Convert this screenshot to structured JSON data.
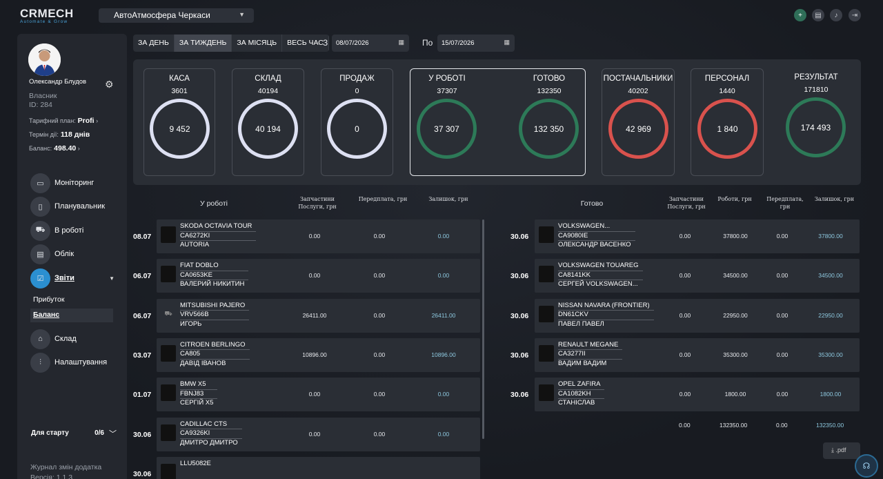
{
  "app": {
    "logo_main": "CRMECH",
    "logo_tag": "Automate & Grow"
  },
  "header": {
    "shop": "АвтоАтмосфера Черкаси",
    "icons": [
      "plus-icon",
      "calendar-icon",
      "bell-icon",
      "logout-icon"
    ]
  },
  "user": {
    "name": "Олександр Блудов",
    "role": "Власник",
    "id": "ID: 284",
    "plan_label": "Тарифний план:",
    "plan": "Profi",
    "term_label": "Термін дії:",
    "term": "118 днів",
    "balance_label": "Баланс:",
    "balance": "498.40"
  },
  "nav": [
    {
      "label": "Моніторинг",
      "icon": "camera-icon"
    },
    {
      "label": "Планувальник",
      "icon": "notebook-icon"
    },
    {
      "label": "В роботі",
      "icon": "car-icon"
    },
    {
      "label": "Облік",
      "icon": "document-icon"
    },
    {
      "label": "Звіти",
      "icon": "report-icon"
    },
    {
      "label": "Склад",
      "icon": "warehouse-icon"
    },
    {
      "label": "Налаштування",
      "icon": "sliders-icon"
    }
  ],
  "reports_sub": [
    "Прибуток",
    "Баланс"
  ],
  "start": {
    "label": "Для старту",
    "count": "0/6"
  },
  "changelog": {
    "title": "Журнал змін додатка",
    "version": "Версія: 1.1.3"
  },
  "period": {
    "tabs": [
      "ЗА ДЕНЬ",
      "ЗА ТИЖДЕНЬ",
      "ЗА МІСЯЦЬ",
      "ВЕСЬ ЧАС"
    ],
    "from_label": "З",
    "from": "08/07/2026",
    "to_label": "По",
    "to": "15/07/2026"
  },
  "stats": {
    "kasa": {
      "title": "КАСА",
      "value": "3601",
      "ring": "9 452"
    },
    "sklad": {
      "title": "СКЛАД",
      "value": "40194",
      "ring": "40 194"
    },
    "prodazh": {
      "title": "ПРОДАЖ",
      "value": "0",
      "ring": "0"
    },
    "u_roboti": {
      "title": "У РОБОТІ",
      "value": "37307",
      "ring": "37 307"
    },
    "gotovo": {
      "title": "ГОТОВО",
      "value": "132350",
      "ring": "132 350"
    },
    "postach": {
      "title": "ПОСТАЧАЛЬНИКИ",
      "value": "40202",
      "ring": "42 969"
    },
    "personal": {
      "title": "ПЕРСОНАЛ",
      "value": "1440",
      "ring": "1 840"
    },
    "result": {
      "title": "РЕЗУЛЬТАТ",
      "value": "171810",
      "ring": "174 493"
    },
    "colors": {
      "neutral": "#dde0f2",
      "red": "#d9524d",
      "green": "#2d7a58"
    }
  },
  "left_table": {
    "title": "У роботі",
    "col1": [
      "Запчастини",
      "Послуги, грн"
    ],
    "col2": "Передплата, грн",
    "col3": "Залишок, грн",
    "rows": [
      {
        "date": "08.07",
        "car": "SKODA OCTAVIA TOUR",
        "plate": "CA6272KI",
        "client": "AUTORIA",
        "a": "0.00",
        "b": "0.00",
        "c": "0.00"
      },
      {
        "date": "06.07",
        "car": "FIAT DOBLO",
        "plate": "CA0653KE",
        "client": "ВАЛЕРИЙ НИКИТИН",
        "a": "0.00",
        "b": "0.00",
        "c": "0.00"
      },
      {
        "date": "06.07",
        "car": "MITSUBISHI PAJERO",
        "plate": "VRV566B",
        "client": "ИГОРЬ",
        "a": "26411.00",
        "b": "0.00",
        "c": "26411.00"
      },
      {
        "date": "03.07",
        "car": "CITROEN BERLINGO",
        "plate": "CA805",
        "client": "ДАВІД ІВАНОВ",
        "a": "10896.00",
        "b": "0.00",
        "c": "10896.00"
      },
      {
        "date": "01.07",
        "car": "BMW X5",
        "plate": "FBNJ83",
        "client": "СЕРГІЙ X5",
        "a": "0.00",
        "b": "0.00",
        "c": "0.00"
      },
      {
        "date": "30.06",
        "car": "CADILLAC CTS",
        "plate": "CA9326KI",
        "client": "ДМИТРО ДМИТРО",
        "a": "0.00",
        "b": "0.00",
        "c": "0.00"
      },
      {
        "date": "30.06",
        "car": "LLU5082E",
        "plate": "",
        "client": "",
        "a": "",
        "b": "",
        "c": ""
      }
    ]
  },
  "right_table": {
    "title": "Готово",
    "col1": [
      "Запчастини",
      "Послуги, грн"
    ],
    "col2": "Роботи, грн",
    "col3": [
      "Передплата,",
      "грн"
    ],
    "col4": "Залишок, грн",
    "rows": [
      {
        "date": "30.06",
        "car": "VOLKSWAGEN...",
        "plate": "CA9080IE",
        "client": "ОЛЕКСАНДР ВАСЕНКО",
        "a": "0.00",
        "b": "37800.00",
        "c": "0.00",
        "d": "37800.00"
      },
      {
        "date": "30.06",
        "car": "VOLKSWAGEN TOUAREG",
        "plate": "CA8141KK",
        "client": "СЕРГЕЙ VOLKSWAGEN...",
        "a": "0.00",
        "b": "34500.00",
        "c": "0.00",
        "d": "34500.00"
      },
      {
        "date": "30.06",
        "car": "NISSAN NAVARA (FRONTIER)",
        "plate": "DN61CKV",
        "client": "ПАВЕЛ ПАВЕЛ",
        "a": "0.00",
        "b": "22950.00",
        "c": "0.00",
        "d": "22950.00"
      },
      {
        "date": "30.06",
        "car": "RENAULT MEGANE",
        "plate": "CA3277II",
        "client": "ВАДИМ ВАДИМ",
        "a": "0.00",
        "b": "35300.00",
        "c": "0.00",
        "d": "35300.00"
      },
      {
        "date": "30.06",
        "car": "OPEL ZAFIRA",
        "plate": "CA1082KH",
        "client": "СТАНІСЛАВ",
        "a": "0.00",
        "b": "1800.00",
        "c": "0.00",
        "d": "1800.00"
      }
    ],
    "totals": {
      "a": "0.00",
      "b": "132350.00",
      "c": "0.00",
      "d": "132350.00"
    }
  },
  "pdf_label": ".pdf"
}
